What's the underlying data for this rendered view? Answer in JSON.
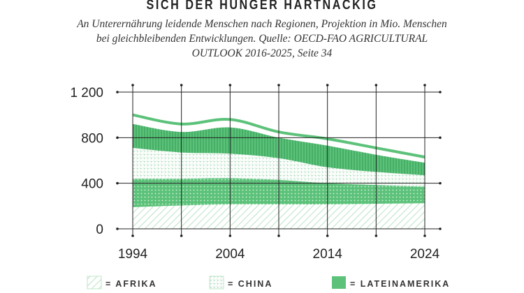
{
  "title": "SICH DER HUNGER HARTNÄCKIG",
  "subtitle": "An Unterernährung leidende Menschen nach Regionen, Projektion in Mio. Menschen bei gleichbleibenden Entwicklungen. Quelle: OECD-FAO AGRICULTURAL OUTLOOK 2016-2025, Seite 34",
  "chart_data": {
    "type": "area",
    "stacked": true,
    "title": "SICH DER HUNGER HARTNÄCKIG",
    "xlabel": "",
    "ylabel": "",
    "x": [
      1994,
      1999,
      2004,
      2009,
      2014,
      2019,
      2024
    ],
    "xlim": [
      1994,
      2024
    ],
    "ylim": [
      0,
      1200
    ],
    "x_tick_labels": [
      "1994",
      "2004",
      "2014",
      "2024"
    ],
    "x_ticks": [
      1994,
      2004,
      2014,
      2024
    ],
    "y_tick_labels": [
      "0",
      "400",
      "800",
      "1 200"
    ],
    "y_ticks": [
      0,
      400,
      800,
      1200
    ],
    "grid": true,
    "series": [
      {
        "name": "AFRIKA",
        "pattern": "diagonal-hatch",
        "values": [
          190,
          205,
          215,
          215,
          215,
          220,
          225
        ]
      },
      {
        "pattern": "green-dotted",
        "values": [
          250,
          235,
          230,
          215,
          185,
          165,
          145
        ]
      },
      {
        "name": "CHINA",
        "pattern": "dots",
        "values": [
          270,
          230,
          215,
          190,
          140,
          115,
          100
        ]
      },
      {
        "pattern": "green-vertical-stripes",
        "values": [
          210,
          180,
          230,
          180,
          190,
          150,
          110
        ]
      }
    ],
    "total_line": [
      1000,
      920,
      960,
      850,
      790,
      710,
      630
    ],
    "legend": [
      {
        "label": "= AFRIKA",
        "pattern": "diagonal-hatch"
      },
      {
        "label": "= CHINA",
        "pattern": "dots"
      },
      {
        "label": "= LATEINAMERIKA",
        "pattern": "solid"
      }
    ],
    "legend_position": "bottom",
    "colors": {
      "green": "#5cc27a",
      "light_green": "#a9dcb6",
      "axis": "#222222"
    }
  }
}
